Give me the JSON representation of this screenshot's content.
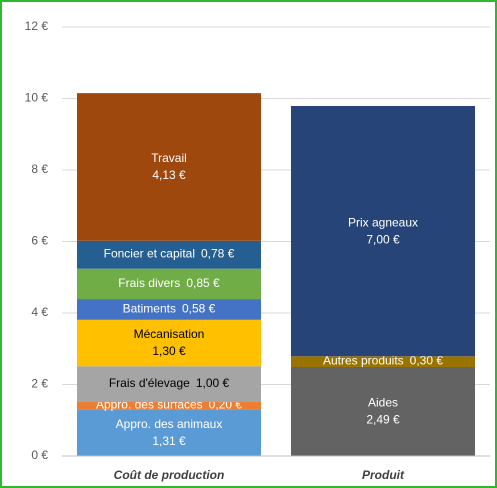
{
  "chart_data": {
    "type": "stacked-bar",
    "categories": [
      "Coût de production",
      "Produit"
    ],
    "ylim": [
      0,
      12
    ],
    "yticks": [
      {
        "value": 0,
        "label": "0 €"
      },
      {
        "value": 2,
        "label": "2 €"
      },
      {
        "value": 4,
        "label": "4 €"
      },
      {
        "value": 6,
        "label": "6 €"
      },
      {
        "value": 8,
        "label": "8 €"
      },
      {
        "value": 10,
        "label": "10 €"
      },
      {
        "value": 12,
        "label": "12 €"
      }
    ],
    "grid": true,
    "series": [
      {
        "name": "Appro. des animaux",
        "color": "#5b9bd5",
        "values": [
          1.31,
          null
        ],
        "value_labels": [
          "1,31 €",
          null
        ]
      },
      {
        "name": "Appro. des surfaces",
        "color": "#ed7d31",
        "values": [
          0.2,
          null
        ],
        "value_labels": [
          "0,20 €",
          null
        ]
      },
      {
        "name": "Frais d'élevage",
        "color": "#a5a5a5",
        "values": [
          1.0,
          null
        ],
        "value_labels": [
          "1,00 €",
          null
        ]
      },
      {
        "name": "Mécanisation",
        "color": "#ffc000",
        "values": [
          1.3,
          null
        ],
        "value_labels": [
          "1,30 €",
          null
        ]
      },
      {
        "name": "Batiments",
        "color": "#4472c4",
        "values": [
          0.58,
          null
        ],
        "value_labels": [
          "0,58 €",
          null
        ]
      },
      {
        "name": "Frais divers",
        "color": "#70ad47",
        "values": [
          0.85,
          null
        ],
        "value_labels": [
          "0,85 €",
          null
        ]
      },
      {
        "name": "Foncier et capital",
        "color": "#255e91",
        "values": [
          0.78,
          null
        ],
        "value_labels": [
          "0,78 €",
          null
        ]
      },
      {
        "name": "Travail",
        "color": "#9e480e",
        "values": [
          4.13,
          null
        ],
        "value_labels": [
          "4,13 €",
          null
        ]
      },
      {
        "name": "Aides",
        "color": "#636363",
        "values": [
          null,
          2.49
        ],
        "value_labels": [
          null,
          "2,49 €"
        ]
      },
      {
        "name": "Autres produits",
        "color": "#997300",
        "values": [
          null,
          0.3
        ],
        "value_labels": [
          null,
          "0,30 €"
        ]
      },
      {
        "name": "Prix agneaux",
        "color": "#264478",
        "values": [
          null,
          7.0
        ],
        "value_labels": [
          null,
          "7,00 €"
        ]
      }
    ]
  }
}
